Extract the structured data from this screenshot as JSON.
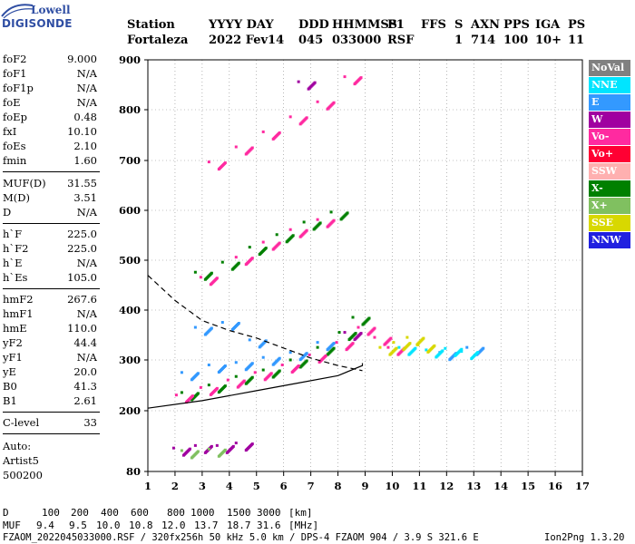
{
  "logo": {
    "line1": "Lowell",
    "line2": "DIGISONDE"
  },
  "header": {
    "labels": {
      "station": "Station",
      "date": "YYYY DAY",
      "ddd": "DDD",
      "time": "HHMMSS",
      "p1": "P1",
      "ffs": "FFS",
      "s": "S",
      "axn": "AXN",
      "pps": "PPS",
      "iga": "IGA",
      "ps": "PS"
    },
    "values": {
      "station": "Fortaleza",
      "date": "2022 Fev14",
      "ddd": "045",
      "time": "033000",
      "p1": "RSF",
      "ffs": "",
      "s": "1",
      "axn": "714",
      "pps": "100",
      "iga": "10+",
      "ps": "11"
    }
  },
  "params": {
    "group1": [
      {
        "name": "foF2",
        "value": "9.000"
      },
      {
        "name": "foF1",
        "value": "N/A"
      },
      {
        "name": "foF1p",
        "value": "N/A"
      },
      {
        "name": "foE",
        "value": "N/A"
      },
      {
        "name": "foEp",
        "value": "0.48"
      },
      {
        "name": "fxI",
        "value": "10.10"
      },
      {
        "name": "foEs",
        "value": "2.10"
      },
      {
        "name": "fmin",
        "value": "1.60"
      }
    ],
    "group2": [
      {
        "name": "MUF(D)",
        "value": "31.55"
      },
      {
        "name": "M(D)",
        "value": "3.51"
      },
      {
        "name": "D",
        "value": "N/A"
      }
    ],
    "group3": [
      {
        "name": "h`F",
        "value": "225.0"
      },
      {
        "name": "h`F2",
        "value": "225.0"
      },
      {
        "name": "h`E",
        "value": "N/A"
      },
      {
        "name": "h`Es",
        "value": "105.0"
      }
    ],
    "group4": [
      {
        "name": "hmF2",
        "value": "267.6"
      },
      {
        "name": "hmF1",
        "value": "N/A"
      },
      {
        "name": "hmE",
        "value": "110.0"
      },
      {
        "name": "yF2",
        "value": "44.4"
      },
      {
        "name": "yF1",
        "value": "N/A"
      },
      {
        "name": "yE",
        "value": "20.0"
      },
      {
        "name": "B0",
        "value": "41.3"
      },
      {
        "name": "B1",
        "value": "2.61"
      }
    ],
    "group5": [
      {
        "name": "C-level",
        "value": "33"
      }
    ],
    "auto": [
      "Auto:",
      "Artist5",
      "500200"
    ]
  },
  "legend": [
    {
      "label": "NoVal",
      "color": "#808080"
    },
    {
      "label": "NNE",
      "color": "#00e5ff"
    },
    {
      "label": "E",
      "color": "#3399ff"
    },
    {
      "label": "W",
      "color": "#a000a0"
    },
    {
      "label": "Vo-",
      "color": "#ff2aa0"
    },
    {
      "label": "Vo+",
      "color": "#ff0033"
    },
    {
      "label": "SSW",
      "color": "#ffb0b0"
    },
    {
      "label": "X-",
      "color": "#008000"
    },
    {
      "label": "X+",
      "color": "#80c060"
    },
    {
      "label": "SSE",
      "color": "#d8d800"
    },
    {
      "label": "NNW",
      "color": "#2020e0"
    }
  ],
  "chart_data": {
    "type": "scatter",
    "x_ticks": [
      "1",
      "2",
      "3",
      "4",
      "5",
      "6",
      "7",
      "8",
      "9",
      "10",
      "11",
      "12",
      "13",
      "14",
      "15",
      "16",
      "17"
    ],
    "y_ticks": [
      "80",
      "200",
      "300",
      "400",
      "500",
      "600",
      "700",
      "800",
      "900"
    ],
    "xlim": [
      1,
      17
    ],
    "ylim": [
      80,
      900
    ],
    "series": [
      {
        "name": "X-",
        "color": "#008000",
        "points": [
          [
            2.5,
            230
          ],
          [
            3.5,
            245
          ],
          [
            4.5,
            262
          ],
          [
            5.5,
            275
          ],
          [
            6.5,
            295
          ],
          [
            7.5,
            320
          ],
          [
            8.3,
            350
          ],
          [
            8.8,
            380
          ],
          [
            3,
            470
          ],
          [
            4,
            490
          ],
          [
            5,
            520
          ],
          [
            6,
            545
          ],
          [
            7,
            570
          ],
          [
            8,
            590
          ]
        ]
      },
      {
        "name": "Vo-",
        "color": "#ff2aa0",
        "points": [
          [
            2.3,
            225
          ],
          [
            3.2,
            240
          ],
          [
            4.2,
            255
          ],
          [
            5.2,
            270
          ],
          [
            6.2,
            285
          ],
          [
            7.2,
            305
          ],
          [
            8.2,
            330
          ],
          [
            9.0,
            360
          ],
          [
            9.6,
            340
          ],
          [
            10.1,
            320
          ],
          [
            3.2,
            460
          ],
          [
            4.5,
            500
          ],
          [
            5.5,
            530
          ],
          [
            6.5,
            555
          ],
          [
            7.5,
            575
          ],
          [
            3.5,
            690
          ],
          [
            4.5,
            720
          ],
          [
            5.5,
            750
          ],
          [
            6.5,
            780
          ],
          [
            7.5,
            810
          ],
          [
            8.5,
            860
          ]
        ]
      },
      {
        "name": "E",
        "color": "#3399ff",
        "points": [
          [
            2.5,
            270
          ],
          [
            3.5,
            285
          ],
          [
            4.5,
            290
          ],
          [
            5.5,
            300
          ],
          [
            6.5,
            310
          ],
          [
            7.5,
            330
          ],
          [
            3,
            360
          ],
          [
            4,
            370
          ],
          [
            5,
            335
          ],
          [
            12,
            310
          ],
          [
            13,
            320
          ]
        ]
      },
      {
        "name": "NNE",
        "color": "#00e5ff",
        "points": [
          [
            10.5,
            320
          ],
          [
            11.5,
            315
          ],
          [
            12.2,
            318
          ],
          [
            12.8,
            312
          ]
        ]
      },
      {
        "name": "SSE",
        "color": "#d8d800",
        "points": [
          [
            9.8,
            320
          ],
          [
            10.3,
            330
          ],
          [
            10.8,
            340
          ],
          [
            11.2,
            325
          ]
        ]
      },
      {
        "name": "W",
        "color": "#a000a0",
        "points": [
          [
            2.2,
            120
          ],
          [
            3,
            125
          ],
          [
            3.8,
            125
          ],
          [
            4.5,
            130
          ],
          [
            6.8,
            850
          ],
          [
            8.5,
            350
          ]
        ]
      },
      {
        "name": "X+",
        "color": "#80c060",
        "points": [
          [
            2.5,
            115
          ],
          [
            3.5,
            118
          ]
        ]
      }
    ],
    "curves": [
      {
        "name": "profile",
        "style": "solid",
        "points": [
          [
            1,
            205
          ],
          [
            3,
            220
          ],
          [
            5,
            240
          ],
          [
            6.5,
            255
          ],
          [
            8,
            270
          ],
          [
            8.9,
            290
          ],
          [
            8.9,
            295
          ]
        ]
      },
      {
        "name": "trace",
        "style": "dashed",
        "points": [
          [
            1,
            470
          ],
          [
            2,
            420
          ],
          [
            3,
            380
          ],
          [
            4,
            360
          ],
          [
            5,
            345
          ],
          [
            6,
            325
          ],
          [
            7,
            305
          ],
          [
            8,
            290
          ],
          [
            8.9,
            280
          ]
        ]
      }
    ]
  },
  "footer": {
    "d_label": "D",
    "d_values": [
      "100",
      "200",
      "400",
      "600",
      "800",
      "1000",
      "1500",
      "3000"
    ],
    "d_unit": "[km]",
    "muf_label": "MUF",
    "muf_values": [
      "9.4",
      "9.5",
      "10.0",
      "10.8",
      "12.0",
      "13.7",
      "18.7",
      "31.6"
    ],
    "muf_unit": "[MHz]",
    "info": "FZAOM_2022045033000.RSF / 320fx256h 50 kHz 5.0 km / DPS-4 FZAOM 904 / 3.9 S 321.6 E",
    "version": "Ion2Png 1.3.20"
  }
}
